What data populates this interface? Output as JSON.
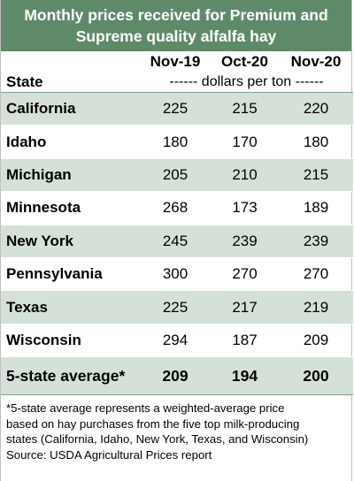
{
  "title": {
    "line1": "Monthly prices received for Premium and",
    "line2": "Supreme quality alfalfa hay"
  },
  "header": {
    "periods": [
      "Nov-19",
      "Oct-20",
      "Nov-20"
    ],
    "state_label": "State",
    "units": "------ dollars per ton ------"
  },
  "rows": [
    {
      "state": "California",
      "values": [
        "225",
        "215",
        "220"
      ]
    },
    {
      "state": "Idaho",
      "values": [
        "180",
        "170",
        "180"
      ]
    },
    {
      "state": "Michigan",
      "values": [
        "205",
        "210",
        "215"
      ]
    },
    {
      "state": "Minnesota",
      "values": [
        "268",
        "173",
        "189"
      ]
    },
    {
      "state": "New York",
      "values": [
        "245",
        "239",
        "239"
      ]
    },
    {
      "state": "Pennsylvania",
      "values": [
        "300",
        "270",
        "270"
      ]
    },
    {
      "state": "Texas",
      "values": [
        "225",
        "217",
        "219"
      ]
    },
    {
      "state": "Wisconsin",
      "values": [
        "294",
        "187",
        "209"
      ]
    }
  ],
  "average": {
    "label": "5-state average*",
    "values": [
      "209",
      "194",
      "200"
    ]
  },
  "footnote": {
    "lines": [
      "*5-state average represents  a weighted-average price",
      "based on hay purchases from the five top milk-producing",
      "states (California, Idaho, New York, Texas, and Wisconsin)",
      "Source: USDA Agricultural Prices report"
    ]
  },
  "colors": {
    "header_bg": "#5f8a6a",
    "shade": "#d5e0d8"
  }
}
